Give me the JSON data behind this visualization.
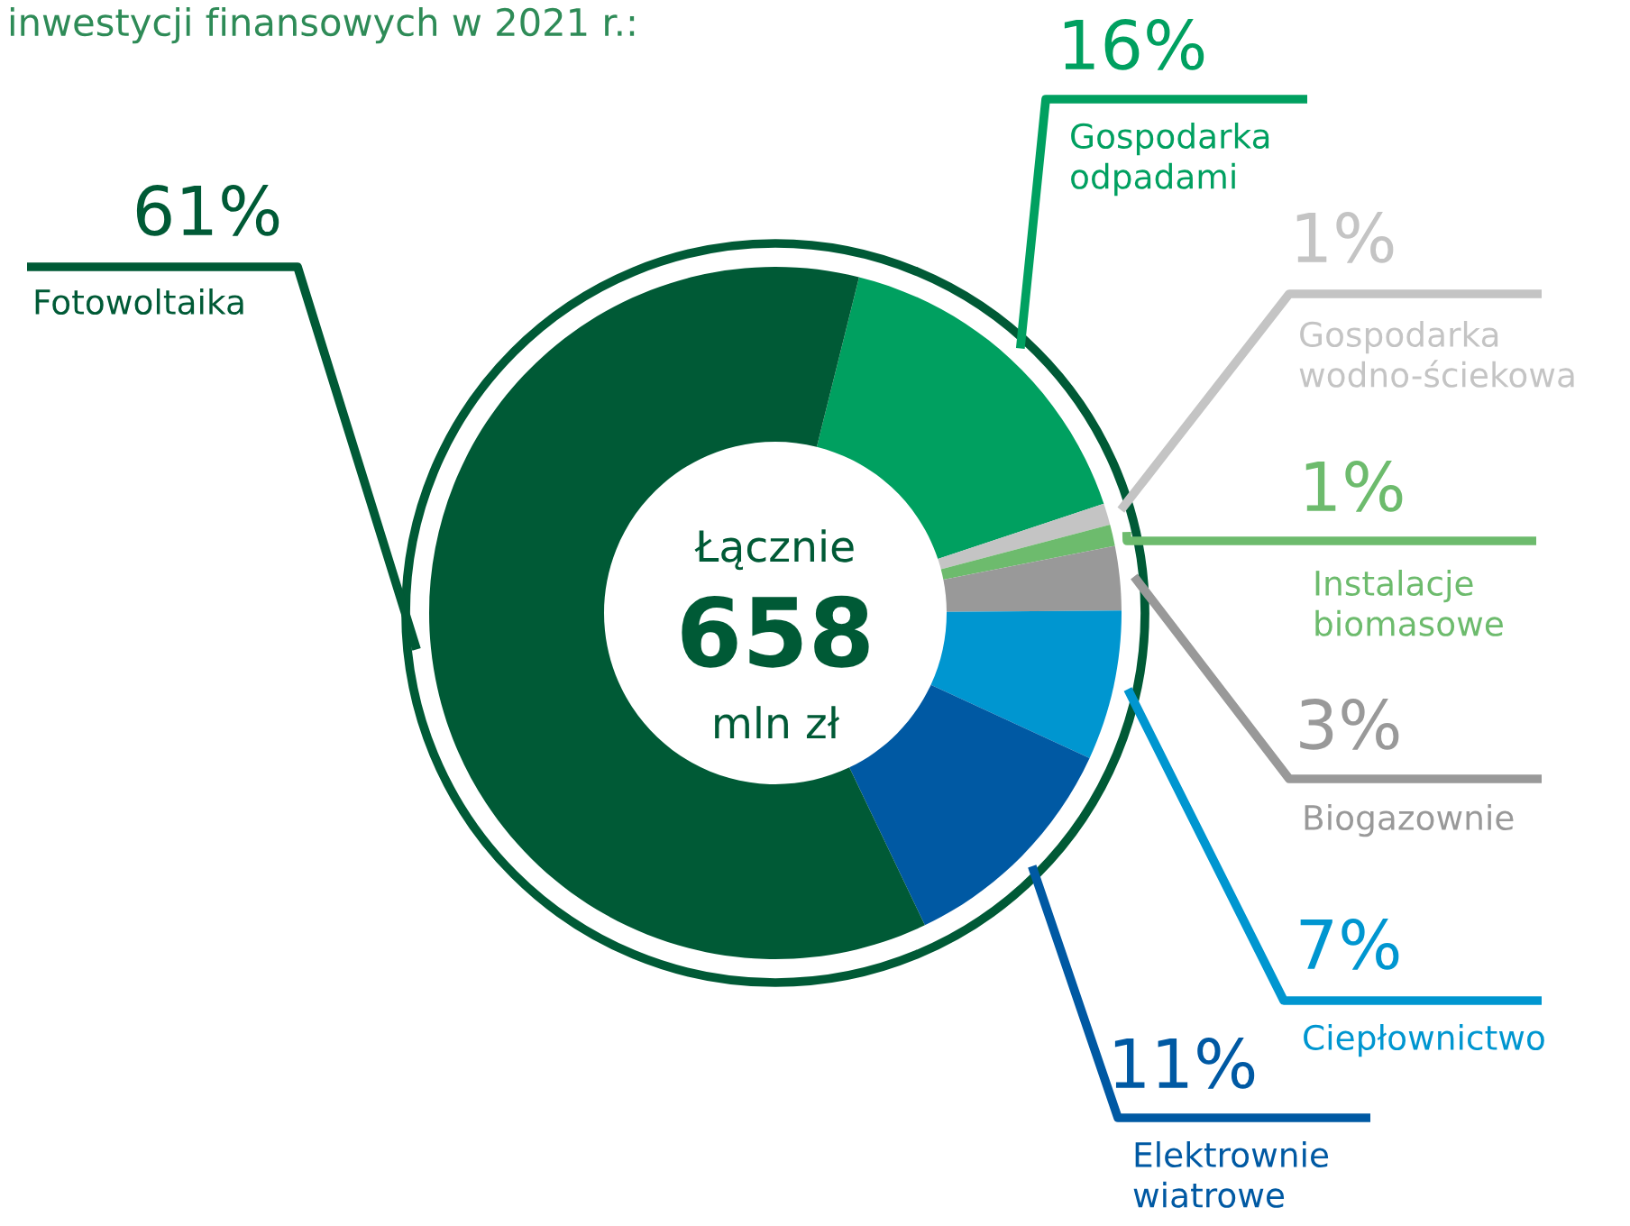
{
  "chart_data": {
    "type": "donut",
    "title": "inwestycji finansowych w 2021 r.:",
    "categories": [
      "Gospodarka\nodpadami",
      "Gospodarka\nwodno-ściekowa",
      "Instalacje\nbiomasowe",
      "Biogazownie",
      "Ciepłownictwo",
      "Elektrownie\nwiatrowe",
      "Fotowoltaika"
    ],
    "values": [
      16,
      1,
      1,
      3,
      7,
      11,
      61
    ],
    "value_labels": [
      "16%",
      "1%",
      "1%",
      "3%",
      "7%",
      "11%",
      "61%"
    ],
    "colors": [
      "#00a060",
      "#c4c4c4",
      "#6dbb6d",
      "#999999",
      "#0096d0",
      "#0059a3",
      "#005a36"
    ],
    "annotations": [
      "Łącznie",
      "658",
      "mln zł"
    ],
    "legend": false
  }
}
